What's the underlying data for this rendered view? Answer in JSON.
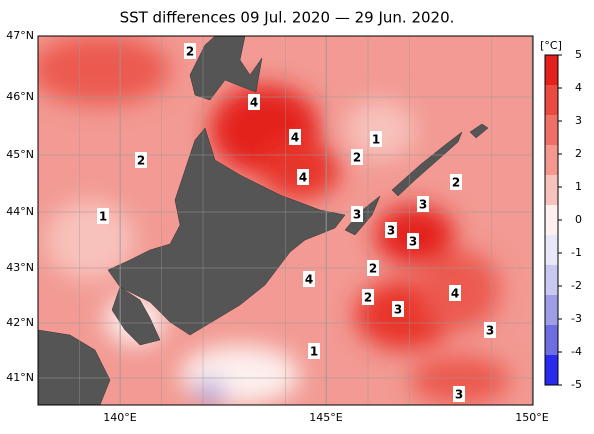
{
  "map": {
    "title": "SST differences 09 Jul. 2020 — 29 Jun. 2020.",
    "lat_labels": [
      "47°N",
      "46°N",
      "45°N",
      "44°N",
      "43°N",
      "42°N",
      "41°N"
    ],
    "lon_labels": [
      "140°E",
      "145°E",
      "150°E"
    ],
    "colorbar": {
      "unit": "[°C]",
      "ticks": [
        5,
        4,
        3,
        2,
        1,
        0,
        -1,
        -2,
        -3,
        -4,
        -5
      ],
      "colors": [
        "#e4201c",
        "#ea4a40",
        "#ef7067",
        "#f4988f",
        "#f8c2bc",
        "#fdf0ee",
        "#e8e8f8",
        "#c8c8f0",
        "#9e9ee6",
        "#6e6ee0",
        "#2a2aee"
      ]
    },
    "contour_labels": [
      2,
      4,
      4,
      4,
      1,
      2,
      2,
      1,
      2,
      3,
      3,
      3,
      4,
      2,
      2,
      3,
      4,
      3,
      3,
      1,
      3
    ]
  }
}
